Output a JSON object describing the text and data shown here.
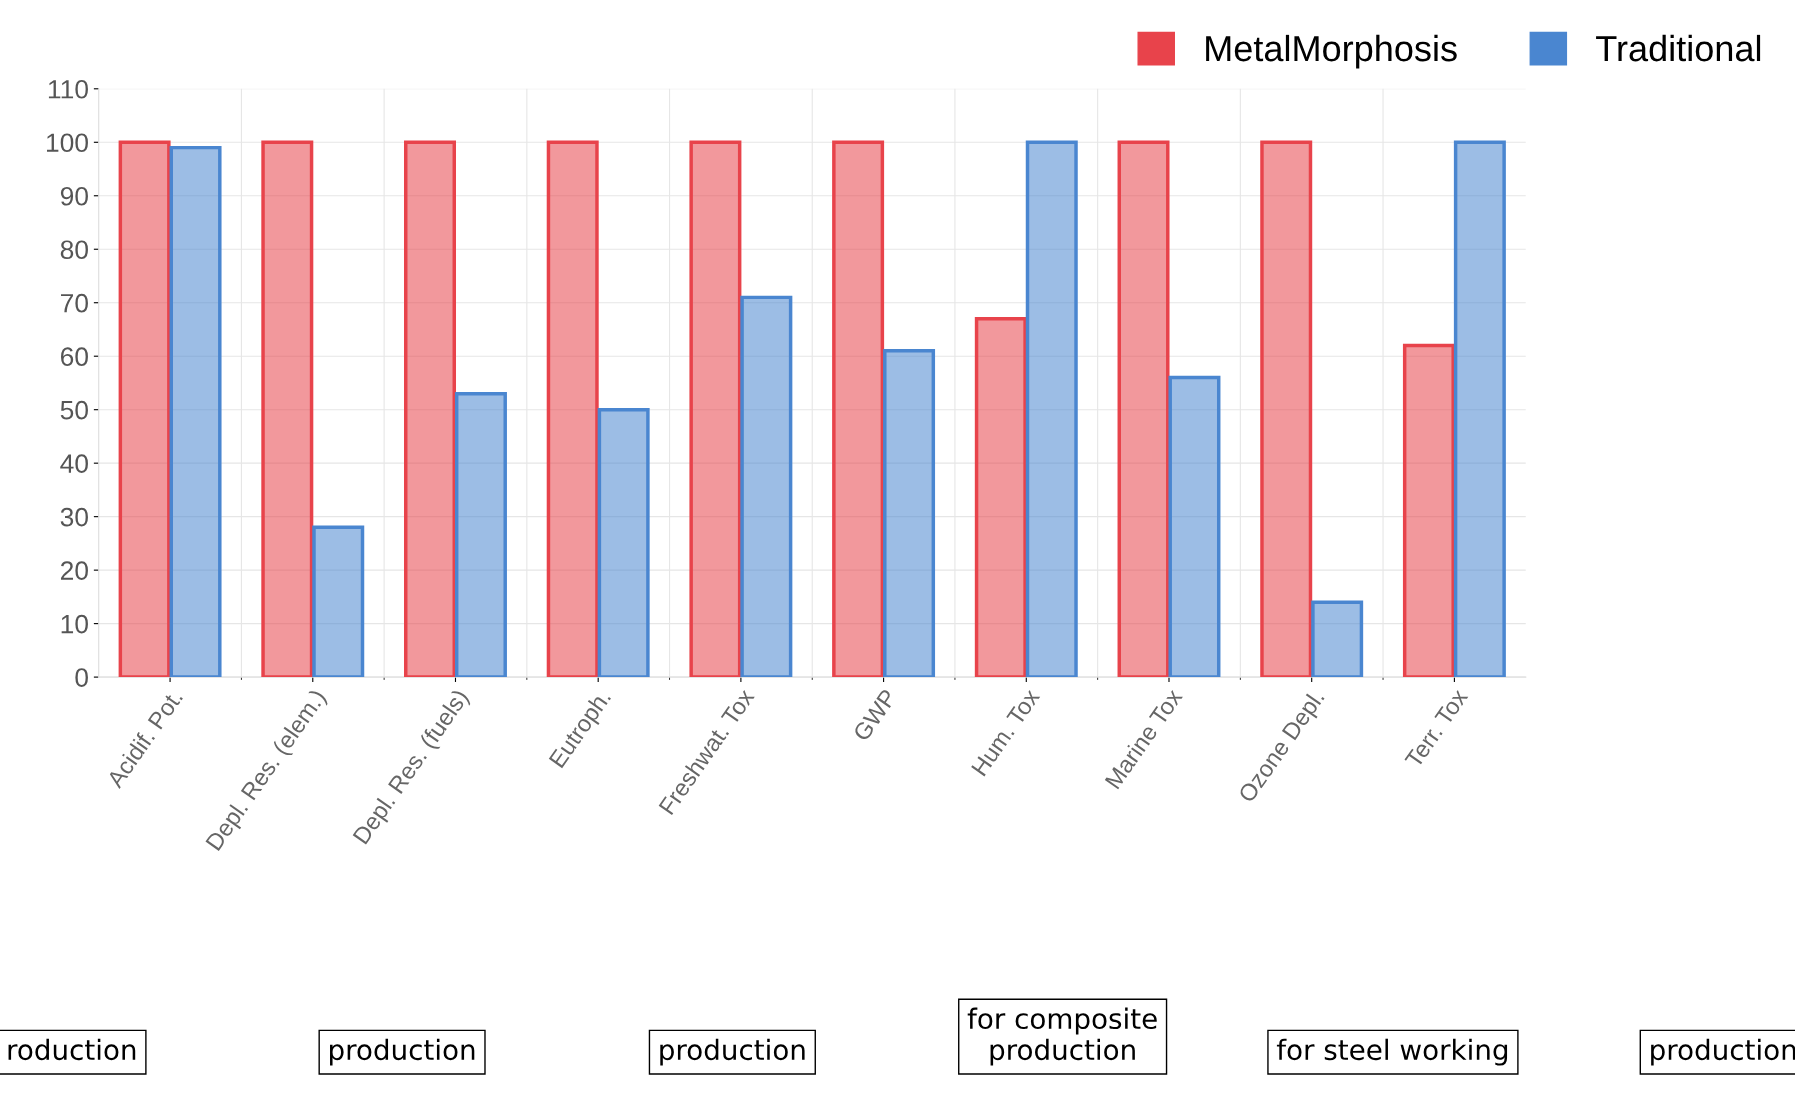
{
  "chart_data": {
    "type": "bar",
    "categories": [
      "Acidif. Pot.",
      "Depl. Res. (elem.)",
      "Depl. Res. (fuels)",
      "Eutroph.",
      "Freshwat. Tox",
      "GWP",
      "Hum. Tox",
      "Marine Tox",
      "Ozone Depl.",
      "Terr. Tox"
    ],
    "series": [
      {
        "name": "MetalMorphosis",
        "color": "#e8434b",
        "values": [
          100,
          100,
          100,
          100,
          100,
          100,
          67,
          100,
          100,
          62
        ]
      },
      {
        "name": "Traditional",
        "color": "#4a86d0",
        "values": [
          99,
          28,
          53,
          50,
          71,
          61,
          100,
          56,
          14,
          100
        ]
      }
    ],
    "ylim": [
      0,
      110
    ],
    "yticks": [
      0,
      10,
      20,
      30,
      40,
      50,
      60,
      70,
      80,
      90,
      100,
      110
    ],
    "grid": true,
    "legend": "top right",
    "annotations": [
      "roduction",
      "production",
      "production",
      "for composite\nproduction",
      "for steel working",
      "production"
    ]
  }
}
